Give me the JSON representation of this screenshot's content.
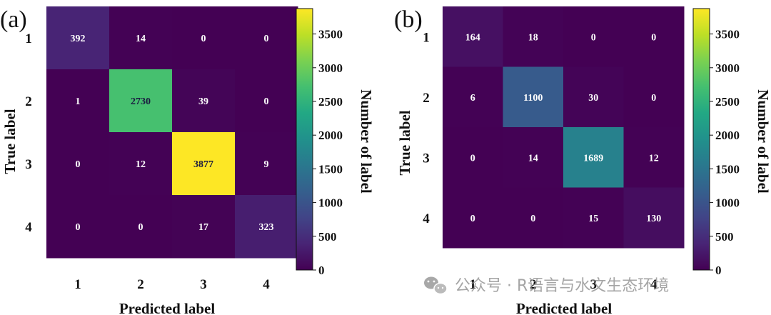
{
  "chart_data": [
    {
      "type": "heatmap",
      "panel_label": "(a)",
      "xlabel": "Predicted label",
      "ylabel": "True label",
      "x_categories": [
        "1",
        "2",
        "3",
        "4"
      ],
      "y_categories": [
        "1",
        "2",
        "3",
        "4"
      ],
      "matrix": [
        [
          392,
          14,
          0,
          0
        ],
        [
          1,
          2730,
          39,
          0
        ],
        [
          0,
          12,
          3877,
          9
        ],
        [
          0,
          0,
          17,
          323
        ]
      ],
      "colorbar": {
        "label": "Number of label",
        "min": 0,
        "max": 3877,
        "ticks": [
          0,
          500,
          1000,
          1500,
          2000,
          2500,
          3000,
          3500
        ],
        "colormap": "viridis"
      }
    },
    {
      "type": "heatmap",
      "panel_label": "(b)",
      "xlabel": "Predicted label",
      "ylabel": "True label",
      "x_categories": [
        "1",
        "2",
        "3",
        "4"
      ],
      "y_categories": [
        "1",
        "2",
        "3",
        "4"
      ],
      "matrix": [
        [
          164,
          18,
          0,
          0
        ],
        [
          6,
          1100,
          30,
          0
        ],
        [
          0,
          14,
          1689,
          12
        ],
        [
          0,
          0,
          15,
          130
        ]
      ],
      "colorbar": {
        "label": "Number of label",
        "min": 0,
        "max": 3877,
        "ticks": [
          0,
          500,
          1000,
          1500,
          2000,
          2500,
          3000,
          3500
        ],
        "colormap": "viridis"
      }
    }
  ],
  "watermark": {
    "text": "公众号 · R语言与水文生态环境",
    "icon": "wechat-icon"
  }
}
